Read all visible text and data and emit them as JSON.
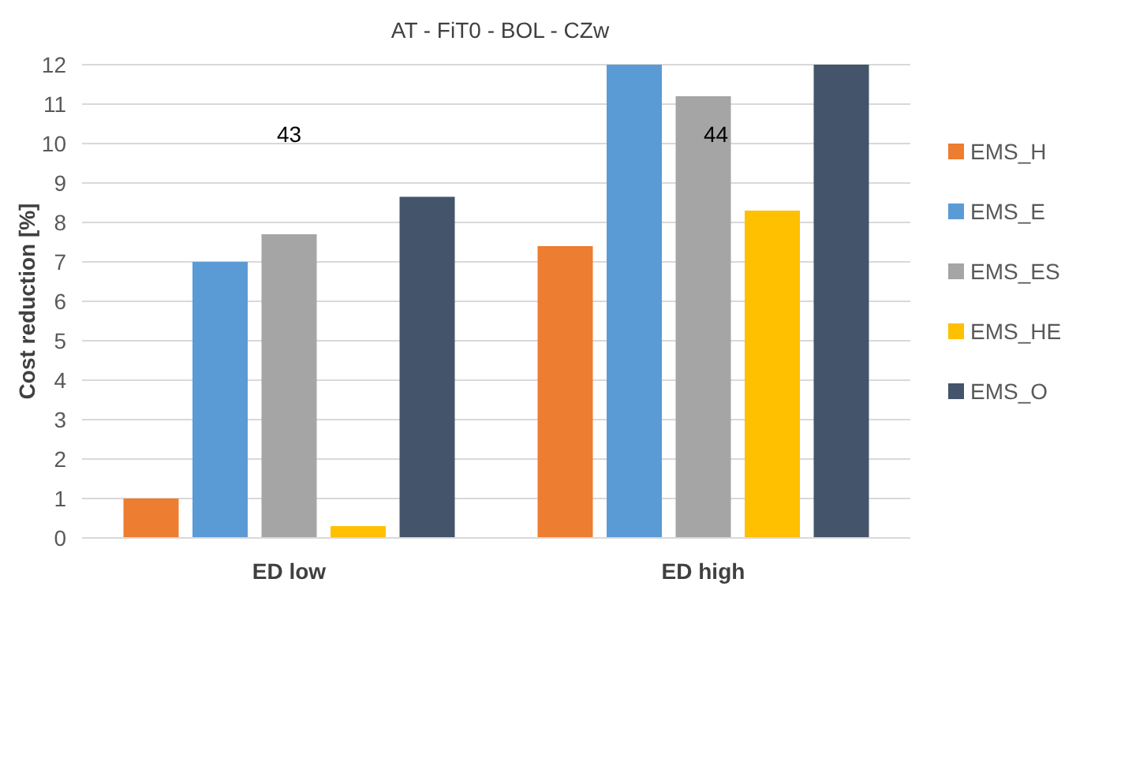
{
  "chart_data": {
    "type": "bar",
    "title": "AT - FiT0 - BOL - CZw",
    "ylabel": "Cost reduction [%]",
    "categories": [
      "ED low",
      "ED high"
    ],
    "series": [
      {
        "name": "EMS_H",
        "color": "#ed7d31",
        "values": [
          1.0,
          7.4
        ]
      },
      {
        "name": "EMS_E",
        "color": "#5b9bd5",
        "values": [
          7.0,
          12
        ]
      },
      {
        "name": "EMS_ES",
        "color": "#a5a5a5",
        "values": [
          7.7,
          11.2
        ]
      },
      {
        "name": "EMS_HE",
        "color": "#ffc000",
        "values": [
          0.3,
          8.3
        ]
      },
      {
        "name": "EMS_O",
        "color": "#44546a",
        "values": [
          8.65,
          12
        ]
      }
    ],
    "ylim": [
      0,
      12
    ],
    "yticks": [
      0,
      1,
      2,
      3,
      4,
      5,
      6,
      7,
      8,
      9,
      10,
      11,
      12
    ],
    "grid": "y",
    "legend": "right",
    "annotations": [
      "43",
      "44"
    ]
  }
}
